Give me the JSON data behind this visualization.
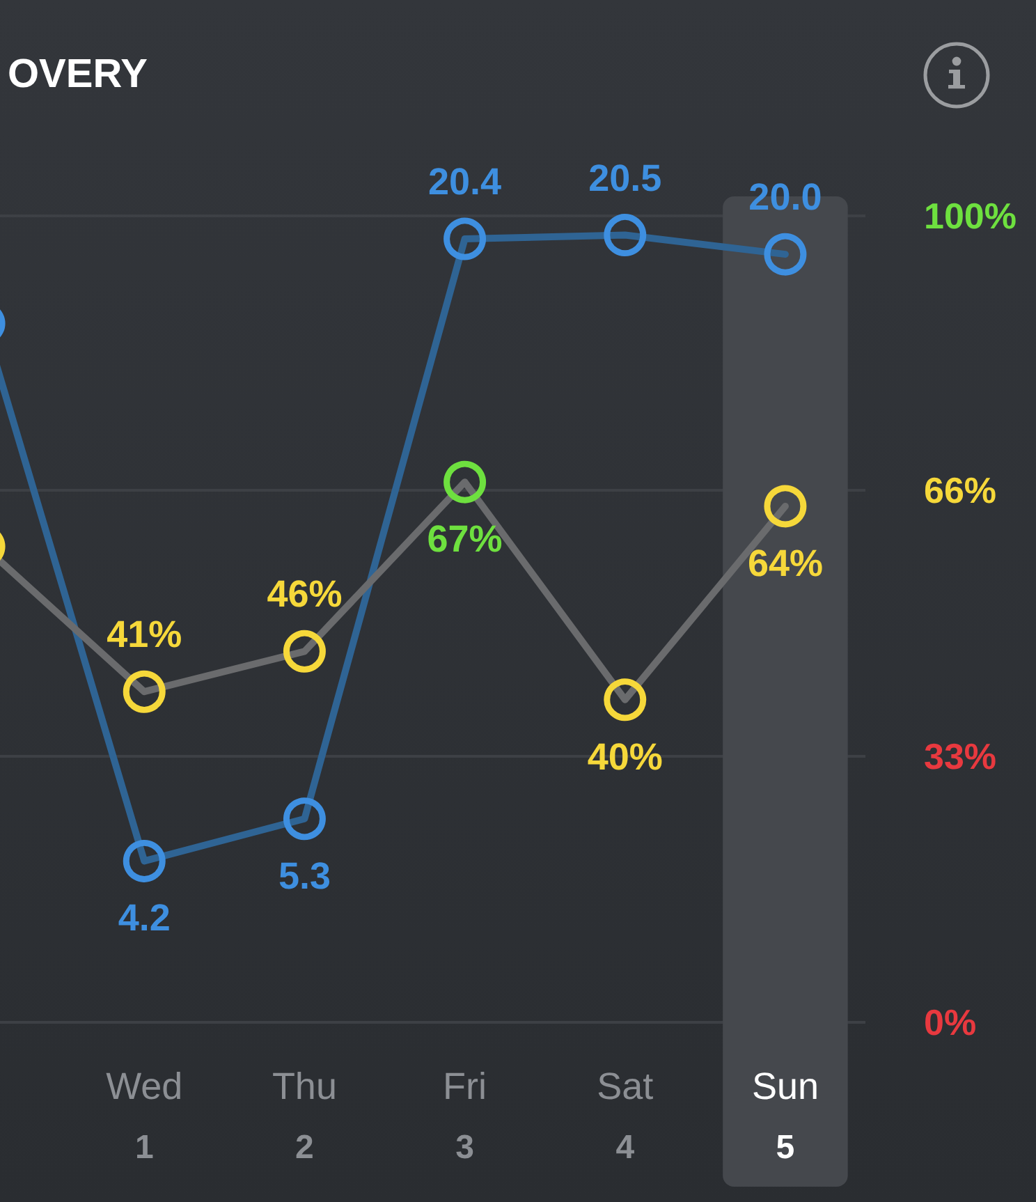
{
  "chart_data": {
    "type": "line",
    "title": "OVERY",
    "categories": [
      null,
      "Wed\n1",
      "Thu\n2",
      "Fri\n3",
      "Sat\n4",
      "Sun\n5"
    ],
    "series": [
      {
        "axis": "y2",
        "color": "#2f6494",
        "colors": [
          "#3e8fe0",
          "#3e8fe0",
          "#3e8fe0",
          "#3e8fe0",
          "#3e8fe0",
          "#3e8fe0"
        ],
        "values": [
          18.2,
          4.2,
          5.3,
          20.4,
          20.5,
          20.0
        ],
        "value_labels": [
          null,
          "4.2",
          "5.3",
          "20.4",
          "20.5",
          "20.0"
        ]
      },
      {
        "color": "#6a6b6d",
        "colors": [
          "#f6d83a",
          "#f6d83a",
          "#f6d83a",
          "#6ee03f",
          "#f6d83a",
          "#f6d83a"
        ],
        "values": [
          59,
          41,
          46,
          67,
          40,
          64
        ],
        "value_labels": [
          null,
          "41%",
          "46%",
          "67%",
          "40%",
          "64%"
        ]
      }
    ],
    "ylim": [
      0,
      100
    ],
    "yticks": [
      {
        "value": 0,
        "label": "0%"
      },
      {
        "value": 33,
        "label": "33%"
      },
      {
        "value": 66,
        "label": "66%"
      },
      {
        "value": 100,
        "label": "100%"
      }
    ],
    "y2lim": [
      0,
      21
    ],
    "grid": "y",
    "tick_labels": "xy",
    "marker": "circle",
    "line_style": "solid",
    "bands": [
      {
        "axis": "x",
        "from": "Sun\n5",
        "to": "Sun\n5",
        "color": "#45484d"
      }
    ]
  }
}
